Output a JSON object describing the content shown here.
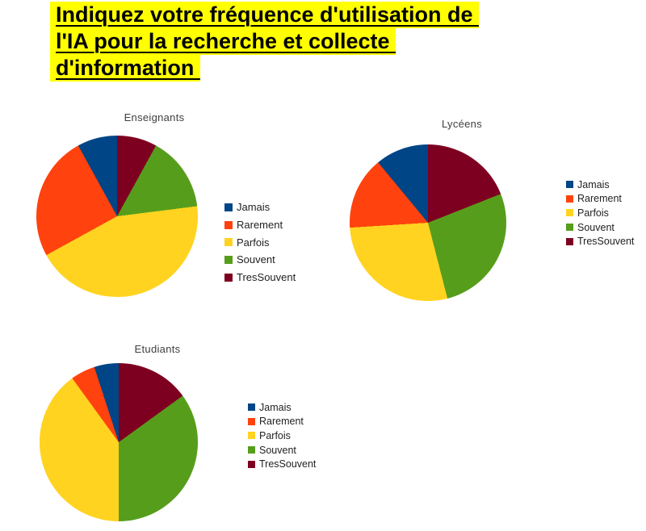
{
  "title": {
    "lines": [
      "Indiquez votre fréquence d'utilisation de ",
      "l'IA pour la recherche et collecte ",
      "d'information "
    ],
    "highlight_color": "#ffff00",
    "text_color": "#000000"
  },
  "chart_data": [
    {
      "type": "pie",
      "title": "Enseignants",
      "labels": [
        "Jamais",
        "Rarement",
        "Parfois",
        "Souvent",
        "TresSouvent"
      ],
      "values": [
        8,
        25,
        44,
        15,
        8
      ],
      "unit": "percent",
      "colors": [
        "#004586",
        "#ff420e",
        "#ffd320",
        "#579d1c",
        "#7e0021"
      ],
      "start_angle": "top",
      "direction": "counterclockwise",
      "legend_position": "right"
    },
    {
      "type": "pie",
      "title": "Lycéens",
      "labels": [
        "Jamais",
        "Rarement",
        "Parfois",
        "Souvent",
        "TresSouvent"
      ],
      "values": [
        11,
        15,
        28,
        27,
        19
      ],
      "unit": "percent",
      "colors": [
        "#004586",
        "#ff420e",
        "#ffd320",
        "#579d1c",
        "#7e0021"
      ],
      "start_angle": "top",
      "direction": "counterclockwise",
      "legend_position": "right"
    },
    {
      "type": "pie",
      "title": "Etudiants",
      "labels": [
        "Jamais",
        "Rarement",
        "Parfois",
        "Souvent",
        "TresSouvent"
      ],
      "values": [
        5,
        5,
        40,
        35,
        15
      ],
      "unit": "percent",
      "colors": [
        "#004586",
        "#ff420e",
        "#ffd320",
        "#579d1c",
        "#7e0021"
      ],
      "start_angle": "top",
      "direction": "counterclockwise",
      "legend_position": "right"
    }
  ]
}
